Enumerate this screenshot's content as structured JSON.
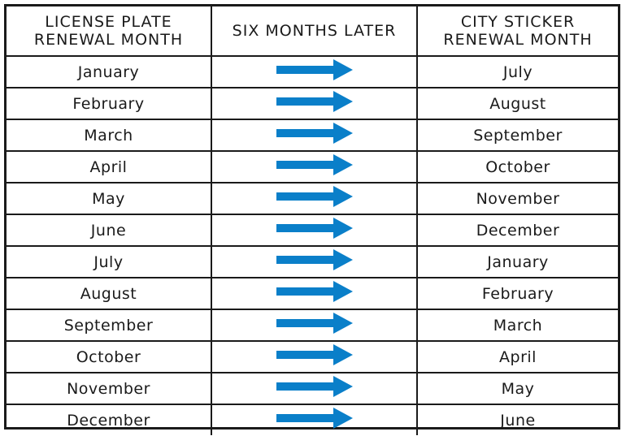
{
  "headers": {
    "col1_line1": "LICENSE PLATE",
    "col1_line2": "RENEWAL MONTH",
    "col2": "SIX MONTHS LATER",
    "col3_line1": "CITY STICKER",
    "col3_line2": "RENEWAL MONTH"
  },
  "arrow_icon": "right-arrow-icon",
  "arrow_color": "#0a7fc9",
  "border_color": "#1a1a1a",
  "rows": [
    {
      "plate": "January",
      "sticker": "July"
    },
    {
      "plate": "February",
      "sticker": "August"
    },
    {
      "plate": "March",
      "sticker": "September"
    },
    {
      "plate": "April",
      "sticker": "October"
    },
    {
      "plate": "May",
      "sticker": "November"
    },
    {
      "plate": "June",
      "sticker": "December"
    },
    {
      "plate": "July",
      "sticker": "January"
    },
    {
      "plate": "August",
      "sticker": "February"
    },
    {
      "plate": "September",
      "sticker": "March"
    },
    {
      "plate": "October",
      "sticker": "April"
    },
    {
      "plate": "November",
      "sticker": "May"
    },
    {
      "plate": "December",
      "sticker": "June"
    }
  ]
}
